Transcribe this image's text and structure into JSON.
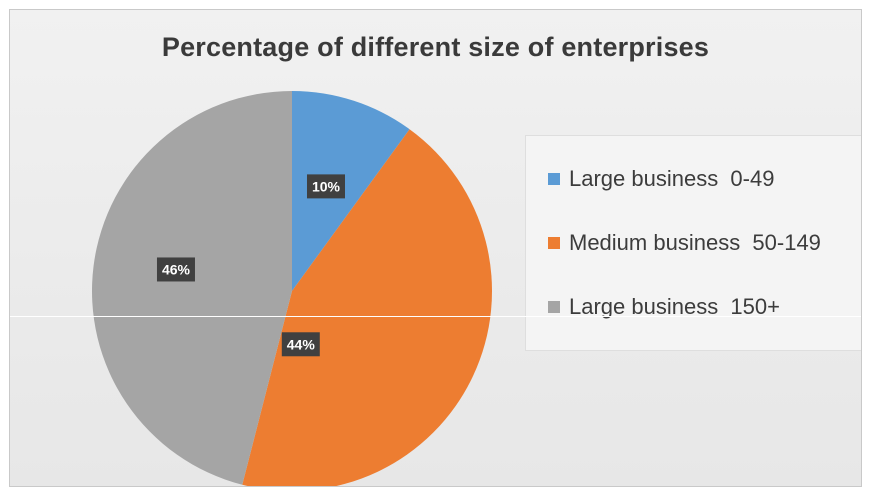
{
  "chart_data": {
    "type": "pie",
    "title": "Percentage of different size of enterprises",
    "slices": [
      {
        "name": "Large business  0-49",
        "value": 10,
        "label": "10%",
        "color": "#5b9bd5"
      },
      {
        "name": "Medium business  50-149",
        "value": 44,
        "label": "44%",
        "color": "#ed7d31"
      },
      {
        "name": "Large business  150+",
        "value": 46,
        "label": "46%",
        "color": "#a5a5a5"
      }
    ],
    "start_angle": "12 o'clock",
    "direction": "clockwise",
    "data_labels": "inside, dark boxes",
    "legend_position": "right"
  }
}
